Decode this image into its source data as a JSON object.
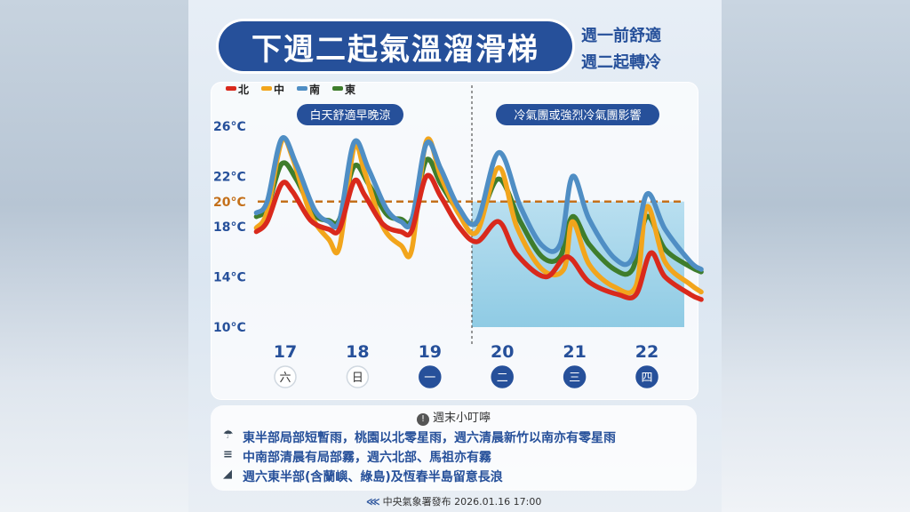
{
  "header": {
    "title": "下週二起氣溫溜滑梯",
    "subtitle_1": "週一前舒適",
    "subtitle_2": "週二起轉冷"
  },
  "chart_data": {
    "type": "line",
    "legend": [
      {
        "name": "北",
        "color": "#d9291c"
      },
      {
        "name": "中",
        "color": "#f2a51c"
      },
      {
        "name": "南",
        "color": "#4f8ec4"
      },
      {
        "name": "東",
        "color": "#3f7d2c"
      }
    ],
    "x_categories": [
      "17",
      "18",
      "19",
      "20",
      "21",
      "22"
    ],
    "weekday_labels": [
      "六",
      "日",
      "一",
      "二",
      "三",
      "四"
    ],
    "weekday_highlight": [
      false,
      false,
      true,
      true,
      true,
      true
    ],
    "y_ticks": [
      "26°C",
      "22°C",
      "20°C",
      "18°C",
      "14°C",
      "10°C"
    ],
    "y_tick_values": [
      26,
      22,
      20,
      18,
      14,
      10
    ],
    "ylim": [
      10,
      26
    ],
    "reference_line": {
      "value": 20,
      "label": "20°C",
      "color": "#c4701a"
    },
    "period_labels": [
      "白天舒適早晚涼",
      "冷氣團或強烈冷氣團影響"
    ],
    "divider_x": 19.58,
    "series": [
      {
        "name": "北",
        "color": "#d9291c",
        "points": [
          [
            16.6,
            17.6
          ],
          [
            16.75,
            18.4
          ],
          [
            16.95,
            21.4
          ],
          [
            17.1,
            20.8
          ],
          [
            17.35,
            18.5
          ],
          [
            17.6,
            17.8
          ],
          [
            17.75,
            17.8
          ],
          [
            17.95,
            21.6
          ],
          [
            18.1,
            20.5
          ],
          [
            18.35,
            18.2
          ],
          [
            18.6,
            17.6
          ],
          [
            18.75,
            17.7
          ],
          [
            18.95,
            22.0
          ],
          [
            19.15,
            20.4
          ],
          [
            19.4,
            18.0
          ],
          [
            19.65,
            16.8
          ],
          [
            19.95,
            18.4
          ],
          [
            20.2,
            15.8
          ],
          [
            20.6,
            14.0
          ],
          [
            20.9,
            15.6
          ],
          [
            21.2,
            13.6
          ],
          [
            21.6,
            12.6
          ],
          [
            21.85,
            12.6
          ],
          [
            22.05,
            15.9
          ],
          [
            22.25,
            14.0
          ],
          [
            22.6,
            12.6
          ],
          [
            22.75,
            12.2
          ]
        ]
      },
      {
        "name": "中",
        "color": "#f2a51c",
        "points": [
          [
            16.6,
            17.9
          ],
          [
            16.75,
            19.2
          ],
          [
            16.95,
            24.8
          ],
          [
            17.1,
            23.5
          ],
          [
            17.35,
            19.0
          ],
          [
            17.6,
            17.0
          ],
          [
            17.75,
            16.4
          ],
          [
            17.95,
            24.3
          ],
          [
            18.1,
            22.3
          ],
          [
            18.35,
            18.0
          ],
          [
            18.6,
            16.5
          ],
          [
            18.75,
            16.2
          ],
          [
            18.95,
            24.8
          ],
          [
            19.15,
            22.0
          ],
          [
            19.4,
            19.0
          ],
          [
            19.65,
            17.6
          ],
          [
            19.95,
            22.7
          ],
          [
            20.2,
            18.0
          ],
          [
            20.55,
            14.6
          ],
          [
            20.85,
            14.6
          ],
          [
            20.97,
            18.4
          ],
          [
            21.2,
            15.0
          ],
          [
            21.55,
            13.2
          ],
          [
            21.85,
            13.3
          ],
          [
            22.0,
            19.6
          ],
          [
            22.25,
            15.2
          ],
          [
            22.6,
            13.4
          ],
          [
            22.75,
            12.8
          ]
        ]
      },
      {
        "name": "南",
        "color": "#4f8ec4",
        "points": [
          [
            16.6,
            19.1
          ],
          [
            16.75,
            20.0
          ],
          [
            16.95,
            25.0
          ],
          [
            17.15,
            23.0
          ],
          [
            17.4,
            19.4
          ],
          [
            17.6,
            18.4
          ],
          [
            17.75,
            18.5
          ],
          [
            17.95,
            24.7
          ],
          [
            18.15,
            22.6
          ],
          [
            18.4,
            19.4
          ],
          [
            18.6,
            18.4
          ],
          [
            18.75,
            18.5
          ],
          [
            18.95,
            24.6
          ],
          [
            19.15,
            22.6
          ],
          [
            19.4,
            19.5
          ],
          [
            19.65,
            18.4
          ],
          [
            19.95,
            23.9
          ],
          [
            20.25,
            19.6
          ],
          [
            20.55,
            16.5
          ],
          [
            20.8,
            16.6
          ],
          [
            20.97,
            22.0
          ],
          [
            21.2,
            18.6
          ],
          [
            21.55,
            15.5
          ],
          [
            21.8,
            15.5
          ],
          [
            22.0,
            20.6
          ],
          [
            22.25,
            17.8
          ],
          [
            22.6,
            15.2
          ],
          [
            22.75,
            14.6
          ]
        ]
      },
      {
        "name": "東",
        "color": "#3f7d2c",
        "points": [
          [
            16.6,
            18.8
          ],
          [
            16.75,
            19.5
          ],
          [
            16.95,
            23.0
          ],
          [
            17.15,
            21.8
          ],
          [
            17.4,
            19.0
          ],
          [
            17.6,
            18.5
          ],
          [
            17.75,
            18.6
          ],
          [
            17.95,
            22.8
          ],
          [
            18.15,
            21.4
          ],
          [
            18.4,
            19.0
          ],
          [
            18.6,
            18.6
          ],
          [
            18.75,
            18.6
          ],
          [
            18.95,
            23.3
          ],
          [
            19.15,
            21.4
          ],
          [
            19.4,
            19.2
          ],
          [
            19.65,
            18.3
          ],
          [
            19.95,
            21.8
          ],
          [
            20.25,
            18.4
          ],
          [
            20.55,
            15.6
          ],
          [
            20.8,
            15.6
          ],
          [
            20.97,
            18.8
          ],
          [
            21.2,
            16.6
          ],
          [
            21.55,
            14.6
          ],
          [
            21.8,
            14.6
          ],
          [
            22.0,
            18.8
          ],
          [
            22.25,
            16.2
          ],
          [
            22.6,
            14.8
          ],
          [
            22.75,
            14.4
          ]
        ]
      }
    ]
  },
  "tips": {
    "title": "週末小叮嚀",
    "items": [
      {
        "icon": "rain-cloud-icon",
        "glyph": "☂",
        "text": "東半部局部短暫雨，桃園以北零星雨，週六清晨新竹以南亦有零星雨"
      },
      {
        "icon": "fog-icon",
        "glyph": "≡",
        "text": "中南部清晨有局部霧，週六北部、馬祖亦有霧"
      },
      {
        "icon": "wave-icon",
        "glyph": "◢",
        "text": "週六東半部(含蘭嶼、綠島)及恆春半島留意長浪"
      }
    ]
  },
  "footer": {
    "text": "中央氣象署發布 2026.01.16 17:00"
  }
}
